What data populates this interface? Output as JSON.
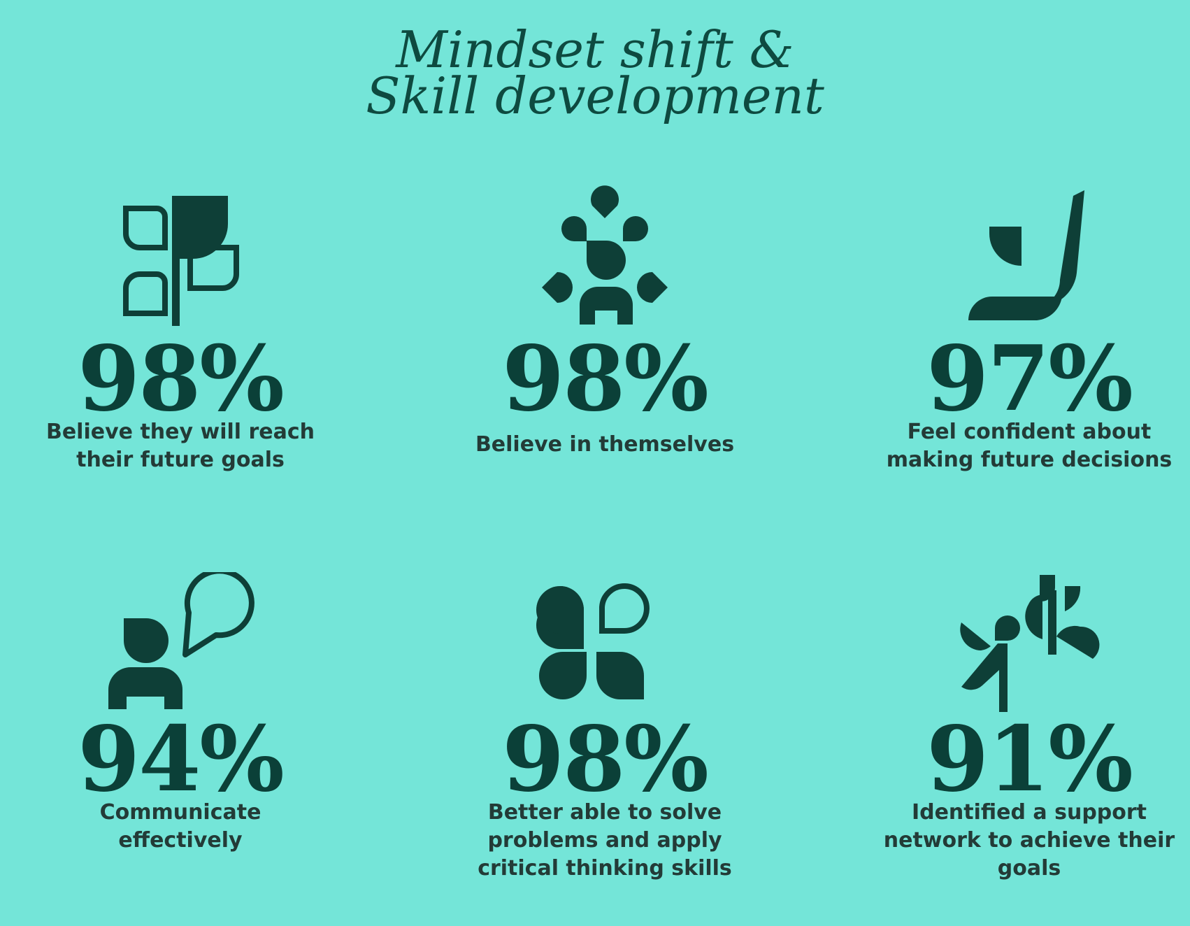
{
  "title": {
    "line1": "Mindset shift &",
    "line2": "Skill development"
  },
  "colors": {
    "background": "#74e5d8",
    "ink": "#0d3d36"
  },
  "stats": [
    {
      "value": "98%",
      "label": "Believe they will reach their future goals",
      "icon": "growing-plant-icon"
    },
    {
      "value": "98%",
      "label": "Believe in themselves",
      "icon": "person-radiating-icon"
    },
    {
      "value": "97%",
      "label": "Feel confident about making future decisions",
      "icon": "confident-stroke-icon"
    },
    {
      "value": "94%",
      "label": "Communicate effectively",
      "icon": "person-speech-bubble-icon"
    },
    {
      "value": "98%",
      "label": "Better able to solve problems and apply critical thinking skills",
      "icon": "problem-solving-shapes-icon"
    },
    {
      "value": "91%",
      "label": "Identified a support network to achieve their goals",
      "icon": "support-network-figures-icon"
    }
  ]
}
